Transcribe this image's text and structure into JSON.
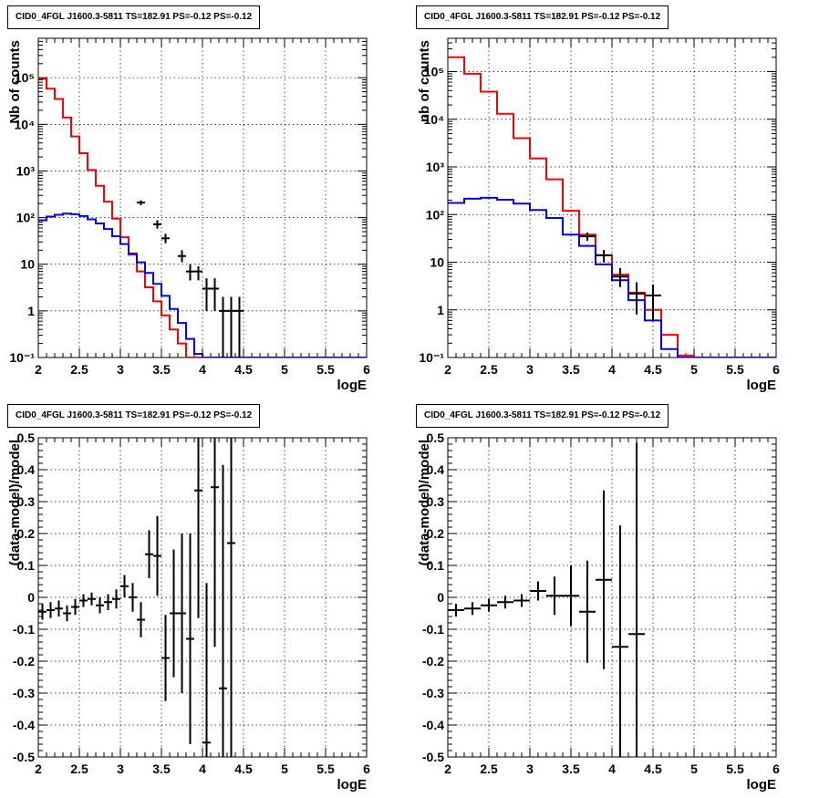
{
  "colors": {
    "total_model": "#ff0000",
    "source_model": "#0000ff",
    "data": "#000000"
  },
  "chart_data": [
    {
      "type": "line",
      "title": "CID0_4FGL J1600.3-5811 TS=182.91 PS=-0.12 PS=-0.12",
      "xlabel": "logE",
      "ylabel": "Nb of counts",
      "yscale": "log",
      "xlim": [
        2,
        6
      ],
      "ylim": [
        0.1,
        700000
      ],
      "grid": true,
      "x_ticks": [
        "2",
        "2.5",
        "3",
        "3.5",
        "4",
        "4.5",
        "5",
        "5.5",
        "6"
      ],
      "y_ticks": [
        "10⁻¹",
        "1",
        "10",
        "10²",
        "10³",
        "10⁴",
        "10⁵"
      ],
      "bin_edges": [
        2.0,
        2.1,
        2.2,
        2.3,
        2.4,
        2.5,
        2.6,
        2.7,
        2.8,
        2.9,
        3.0,
        3.1,
        3.2,
        3.3,
        3.4,
        3.5,
        3.6,
        3.7,
        3.8,
        3.9,
        4.0,
        4.1,
        4.2,
        4.3,
        4.4,
        4.5,
        4.6,
        4.7,
        4.8,
        4.9,
        5.0,
        5.1,
        5.2,
        5.3,
        5.4,
        5.5,
        5.6,
        5.7,
        5.8,
        5.9,
        6.0
      ],
      "series": [
        {
          "style": "step",
          "color": "#ff0000",
          "values": [
            95000,
            58000,
            35000,
            14000,
            5500,
            2400,
            1050,
            480,
            220,
            95,
            38,
            16,
            7.0,
            3.2,
            1.6,
            0.8,
            0.4,
            0.2,
            0.1,
            0.1,
            0.1,
            0.1,
            0.1,
            0.1,
            0.1,
            0.1,
            0.1,
            0.1,
            0.1,
            0.1,
            0.1,
            0.1,
            0.1,
            0.1,
            0.1,
            0.1,
            0.1,
            0.1,
            0.1,
            0.1
          ]
        },
        {
          "style": "step",
          "color": "#0000ff",
          "values": [
            88,
            105,
            115,
            122,
            118,
            108,
            92,
            75,
            57,
            40,
            27,
            17,
            11,
            6.5,
            3.8,
            2.1,
            1.1,
            0.55,
            0.25,
            0.12,
            0.1,
            0.1,
            0.1,
            0.1,
            0.1,
            0.1,
            0.1,
            0.1,
            0.1,
            0.1,
            0.1,
            0.1,
            0.1,
            0.1,
            0.1,
            0.1,
            0.1,
            0.1,
            0.1,
            0.1
          ]
        }
      ],
      "points": [
        {
          "x": 3.25,
          "y": 210,
          "ylo": 185,
          "yhi": 235
        },
        {
          "x": 3.45,
          "y": 72,
          "ylo": 58,
          "yhi": 88
        },
        {
          "x": 3.55,
          "y": 36,
          "ylo": 28,
          "yhi": 45
        },
        {
          "x": 3.75,
          "y": 15,
          "ylo": 11,
          "yhi": 20
        },
        {
          "x": 3.85,
          "y": 7,
          "ylo": 4.5,
          "yhi": 10
        },
        {
          "x": 3.95,
          "y": 7,
          "ylo": 4.5,
          "yhi": 9
        },
        {
          "x": 4.05,
          "y": 3,
          "ylo": 1,
          "yhi": 5
        },
        {
          "x": 4.15,
          "y": 3,
          "ylo": 1,
          "yhi": 5
        },
        {
          "x": 4.25,
          "y": 1,
          "ylo": 0.1,
          "yhi": 2
        },
        {
          "x": 4.35,
          "y": 1,
          "ylo": 0.1,
          "yhi": 2
        },
        {
          "x": 4.45,
          "y": 1,
          "ylo": 0.1,
          "yhi": 2
        }
      ]
    },
    {
      "type": "line",
      "title": "CID0_4FGL J1600.3-5811 TS=182.91 PS=-0.12 PS=-0.12",
      "xlabel": "logE",
      "ylabel": "nb of counts",
      "yscale": "log",
      "xlim": [
        2,
        6
      ],
      "ylim": [
        0.1,
        500000
      ],
      "grid": true,
      "x_ticks": [
        "2",
        "2.5",
        "3",
        "3.5",
        "4",
        "4.5",
        "5",
        "5.5",
        "6"
      ],
      "y_ticks": [
        "10⁻¹",
        "1",
        "10",
        "10²",
        "10³",
        "10⁴",
        "10⁵"
      ],
      "bin_edges": [
        2.0,
        2.2,
        2.4,
        2.6,
        2.8,
        3.0,
        3.2,
        3.4,
        3.6,
        3.8,
        4.0,
        4.2,
        4.4,
        4.6,
        4.8,
        5.0,
        5.2,
        5.4,
        5.6,
        5.8,
        6.0
      ],
      "series": [
        {
          "style": "step",
          "color": "#ff0000",
          "values": [
            200000,
            90000,
            38000,
            13000,
            4000,
            1500,
            550,
            120,
            38,
            14,
            5.5,
            2.3,
            1.0,
            0.3,
            0.11,
            0.1,
            0.1,
            0.1,
            0.1,
            0.1
          ]
        },
        {
          "style": "step",
          "color": "#0000ff",
          "values": [
            175,
            215,
            225,
            205,
            170,
            125,
            85,
            38,
            22,
            9,
            4.2,
            1.6,
            0.6,
            0.15,
            0.1,
            0.1,
            0.1,
            0.1,
            0.1,
            0.1
          ]
        }
      ],
      "points": [
        {
          "x": 3.7,
          "y": 35,
          "ylo": 28,
          "yhi": 42
        },
        {
          "x": 3.9,
          "y": 14,
          "ylo": 10,
          "yhi": 18
        },
        {
          "x": 4.1,
          "y": 5,
          "ylo": 3,
          "yhi": 7.5
        },
        {
          "x": 4.3,
          "y": 2.2,
          "ylo": 0.8,
          "yhi": 3.8
        },
        {
          "x": 4.5,
          "y": 2,
          "ylo": 0.6,
          "yhi": 3.4
        }
      ]
    },
    {
      "type": "scatter",
      "title": "CID0_4FGL J1600.3-5811 TS=182.91 PS=-0.12 PS=-0.12",
      "xlabel": "logE",
      "ylabel": "(data-model)/model",
      "xlim": [
        2,
        6
      ],
      "ylim": [
        -0.5,
        0.5
      ],
      "grid": true,
      "x_ticks": [
        "2",
        "2.5",
        "3",
        "3.5",
        "4",
        "4.5",
        "5",
        "5.5",
        "6"
      ],
      "y_ticks": [
        "-0.5",
        "-0.4",
        "-0.3",
        "-0.2",
        "-0.1",
        "0",
        "0.1",
        "0.2",
        "0.3",
        "0.4",
        "0.5"
      ],
      "xerr": 0.05,
      "points": [
        {
          "x": 2.05,
          "y": -0.045,
          "err": 0.025
        },
        {
          "x": 2.15,
          "y": -0.04,
          "err": 0.025
        },
        {
          "x": 2.25,
          "y": -0.035,
          "err": 0.025
        },
        {
          "x": 2.35,
          "y": -0.05,
          "err": 0.025
        },
        {
          "x": 2.45,
          "y": -0.03,
          "err": 0.025
        },
        {
          "x": 2.55,
          "y": -0.01,
          "err": 0.02
        },
        {
          "x": 2.65,
          "y": -0.005,
          "err": 0.02
        },
        {
          "x": 2.75,
          "y": -0.025,
          "err": 0.025
        },
        {
          "x": 2.85,
          "y": -0.015,
          "err": 0.025
        },
        {
          "x": 2.95,
          "y": -0.005,
          "err": 0.03
        },
        {
          "x": 3.05,
          "y": 0.035,
          "err": 0.035
        },
        {
          "x": 3.15,
          "y": 0.0,
          "err": 0.045
        },
        {
          "x": 3.25,
          "y": -0.07,
          "err": 0.055
        },
        {
          "x": 3.35,
          "y": 0.135,
          "err": 0.075
        },
        {
          "x": 3.45,
          "y": 0.13,
          "err": 0.125
        },
        {
          "x": 3.55,
          "y": -0.19,
          "err": 0.135
        },
        {
          "x": 3.65,
          "y": -0.05,
          "err": 0.2
        },
        {
          "x": 3.75,
          "y": -0.05,
          "err": 0.25
        },
        {
          "x": 3.85,
          "y": -0.13,
          "err": 0.33
        },
        {
          "x": 3.95,
          "y": 0.335,
          "err": 0.4
        },
        {
          "x": 4.05,
          "y": -0.455,
          "err": 0.5
        },
        {
          "x": 4.15,
          "y": 0.345,
          "err": 0.5
        },
        {
          "x": 4.25,
          "y": -0.285,
          "err": 0.7
        },
        {
          "x": 4.35,
          "y": 0.17,
          "err": 0.7
        }
      ]
    },
    {
      "type": "scatter",
      "title": "CID0_4FGL J1600.3-5811 TS=182.91 PS=-0.12 PS=-0.12",
      "xlabel": "logE",
      "ylabel": "(data-model)/model",
      "xlim": [
        2,
        6
      ],
      "ylim": [
        -0.5,
        0.5
      ],
      "grid": true,
      "x_ticks": [
        "2",
        "2.5",
        "3",
        "3.5",
        "4",
        "4.5",
        "5",
        "5.5",
        "6"
      ],
      "y_ticks": [
        "-0.5",
        "-0.4",
        "-0.3",
        "-0.2",
        "-0.1",
        "0",
        "0.1",
        "0.2",
        "0.3",
        "0.4",
        "0.5"
      ],
      "xerr": 0.1,
      "points": [
        {
          "x": 2.1,
          "y": -0.04,
          "err": 0.02
        },
        {
          "x": 2.3,
          "y": -0.035,
          "err": 0.02
        },
        {
          "x": 2.5,
          "y": -0.025,
          "err": 0.02
        },
        {
          "x": 2.7,
          "y": -0.015,
          "err": 0.02
        },
        {
          "x": 2.9,
          "y": -0.01,
          "err": 0.02
        },
        {
          "x": 3.1,
          "y": 0.02,
          "err": 0.03
        },
        {
          "x": 3.3,
          "y": 0.005,
          "err": 0.06
        },
        {
          "x": 3.5,
          "y": 0.005,
          "err": 0.095
        },
        {
          "x": 3.7,
          "y": -0.045,
          "err": 0.16
        },
        {
          "x": 3.9,
          "y": 0.055,
          "err": 0.28
        },
        {
          "x": 4.1,
          "y": -0.155,
          "err": 0.38
        },
        {
          "x": 4.3,
          "y": -0.115,
          "err": 0.6
        }
      ]
    }
  ]
}
